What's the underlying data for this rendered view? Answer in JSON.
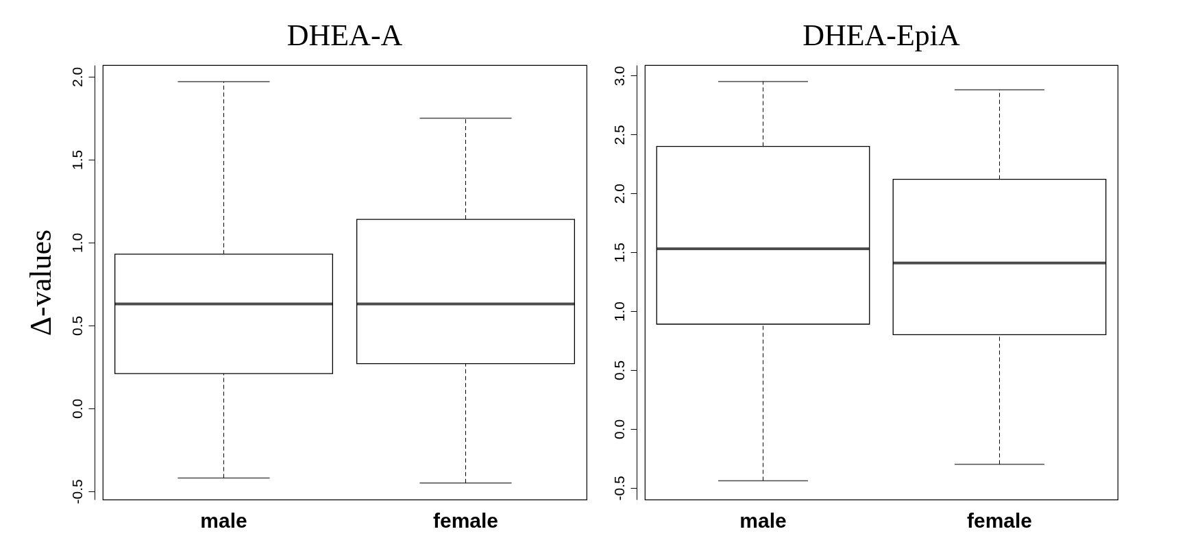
{
  "chart_data": [
    {
      "type": "box",
      "title": "DHEA-A",
      "ylabel": "Δ-values",
      "categories": [
        "male",
        "female"
      ],
      "boxes": [
        {
          "low": -0.42,
          "q1": 0.21,
          "median": 0.63,
          "q3": 0.93,
          "high": 1.97
        },
        {
          "low": -0.45,
          "q1": 0.27,
          "median": 0.63,
          "q3": 1.14,
          "high": 1.75
        }
      ],
      "ylim": [
        -0.55,
        2.07
      ],
      "yticks": [
        {
          "value": -0.5,
          "label": "-0.5"
        },
        {
          "value": 0,
          "label": "0.0"
        },
        {
          "value": 0.5,
          "label": "0.5"
        },
        {
          "value": 1,
          "label": "1.0"
        },
        {
          "value": 1.5,
          "label": "1.5"
        },
        {
          "value": 2,
          "label": "2.0"
        }
      ],
      "grid": false
    },
    {
      "type": "box",
      "title": "DHEA-EpiA",
      "categories": [
        "male",
        "female"
      ],
      "boxes": [
        {
          "low": -0.44,
          "q1": 0.89,
          "median": 1.53,
          "q3": 2.4,
          "high": 2.95
        },
        {
          "low": -0.3,
          "q1": 0.8,
          "median": 1.41,
          "q3": 2.12,
          "high": 2.88
        }
      ],
      "ylim": [
        -0.6,
        3.09
      ],
      "yticks": [
        {
          "value": -0.5,
          "label": "-0.5"
        },
        {
          "value": 0,
          "label": "0.0"
        },
        {
          "value": 0.5,
          "label": "0.5"
        },
        {
          "value": 1,
          "label": "1.0"
        },
        {
          "value": 1.5,
          "label": "1.5"
        },
        {
          "value": 2,
          "label": "2.0"
        },
        {
          "value": 2.5,
          "label": "2.5"
        },
        {
          "value": 3,
          "label": "3.0"
        }
      ],
      "grid": false
    }
  ]
}
